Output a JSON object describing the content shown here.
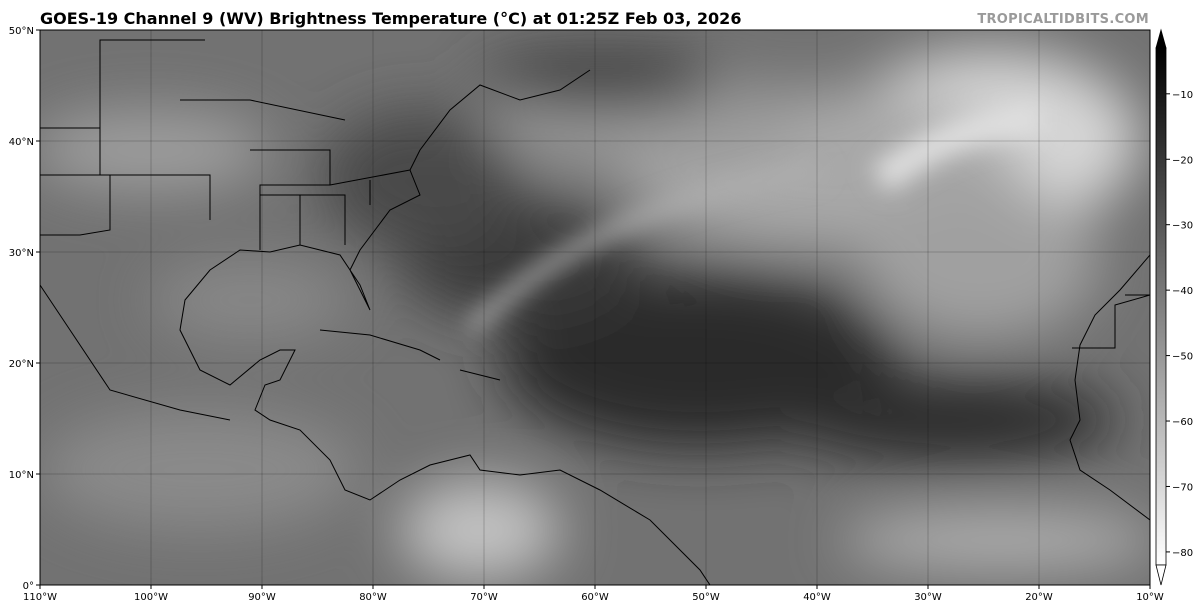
{
  "title": "GOES-19 Channel 9 (WV) Brightness Temperature (°C) at 01:25Z Feb 03, 2026",
  "watermark": "TROPICALTIDBITS.COM",
  "map": {
    "lon_range": [
      -110,
      -10
    ],
    "lat_range": [
      0,
      50
    ],
    "lon_ticks": [
      {
        "value": -110,
        "label": "110°W"
      },
      {
        "value": -100,
        "label": "100°W"
      },
      {
        "value": -90,
        "label": "90°W"
      },
      {
        "value": -80,
        "label": "80°W"
      },
      {
        "value": -70,
        "label": "70°W"
      },
      {
        "value": -60,
        "label": "60°W"
      },
      {
        "value": -50,
        "label": "50°W"
      },
      {
        "value": -40,
        "label": "40°W"
      },
      {
        "value": -30,
        "label": "30°W"
      },
      {
        "value": -20,
        "label": "20°W"
      },
      {
        "value": -10,
        "label": "10°W"
      }
    ],
    "lat_ticks": [
      {
        "value": 0,
        "label": "0°"
      },
      {
        "value": 10,
        "label": "10°N"
      },
      {
        "value": 20,
        "label": "20°N"
      },
      {
        "value": 30,
        "label": "30°N"
      },
      {
        "value": 40,
        "label": "40°N"
      },
      {
        "value": 50,
        "label": "50°N"
      }
    ],
    "gridlines": true
  },
  "colorbar": {
    "range": [
      -82,
      -3
    ],
    "extend": "both",
    "colors": {
      "warm": "#000000",
      "cold": "#ffffff"
    },
    "ticks": [
      {
        "value": -10,
        "label": "−10"
      },
      {
        "value": -20,
        "label": "−20"
      },
      {
        "value": -30,
        "label": "−30"
      },
      {
        "value": -40,
        "label": "−40"
      },
      {
        "value": -50,
        "label": "−50"
      },
      {
        "value": -60,
        "label": "−60"
      },
      {
        "value": -70,
        "label": "−70"
      },
      {
        "value": -80,
        "label": "−80"
      }
    ]
  }
}
